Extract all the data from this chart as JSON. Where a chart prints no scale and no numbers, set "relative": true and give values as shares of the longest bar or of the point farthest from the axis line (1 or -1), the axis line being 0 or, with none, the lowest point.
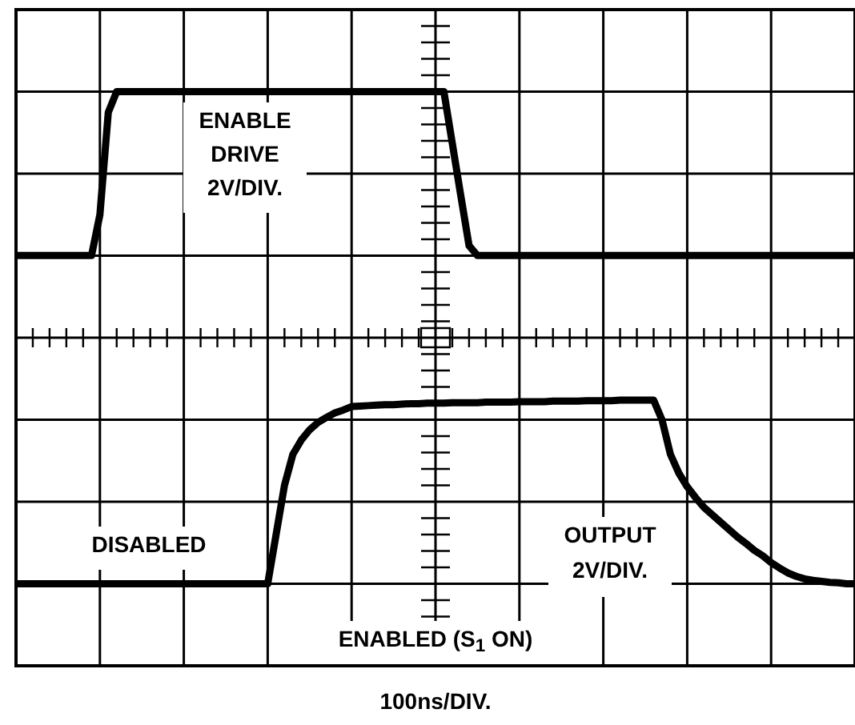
{
  "chart_data": {
    "type": "line",
    "relative": true,
    "grid": true,
    "marker": "none",
    "line_style": "solid",
    "categories": [
      null,
      null,
      null,
      null,
      null,
      null,
      null,
      null,
      null,
      null,
      null,
      null,
      null,
      null,
      null,
      null,
      null,
      null,
      null,
      null,
      null,
      null,
      null,
      null,
      null,
      null,
      null,
      null,
      null,
      null,
      null,
      null,
      null,
      null,
      null,
      null,
      null,
      null,
      null,
      null,
      null,
      null,
      null,
      null,
      null,
      null,
      null,
      null,
      null,
      null,
      null,
      null,
      null,
      null,
      null,
      null,
      null,
      null,
      null,
      null,
      null,
      null,
      null,
      null,
      null,
      null,
      null,
      null,
      null,
      null,
      null,
      null,
      null,
      null,
      null,
      null,
      null,
      null,
      null,
      null,
      null,
      null,
      null,
      null,
      null,
      null,
      null,
      null,
      null,
      null,
      null,
      null,
      null,
      null,
      null,
      null,
      null,
      null,
      null,
      null,
      null
    ],
    "series": [
      {
        "color": "#000000",
        "values": [
          0.667,
          0.667,
          0.667,
          0.667,
          0.667,
          0.667,
          0.667,
          0.667,
          0.667,
          0.667,
          0.75,
          0.958,
          1,
          1,
          1,
          1,
          1,
          1,
          1,
          1,
          1,
          1,
          1,
          1,
          1,
          1,
          1,
          1,
          1,
          1,
          1,
          1,
          1,
          1,
          1,
          1,
          1,
          1,
          1,
          1,
          1,
          1,
          1,
          1,
          1,
          1,
          1,
          1,
          1,
          1,
          1,
          1,
          0.895,
          0.79,
          0.687,
          0.667,
          0.667,
          0.667,
          0.667,
          0.667,
          0.667,
          0.667,
          0.667,
          0.667,
          0.667,
          0.667,
          0.667,
          0.667,
          0.667,
          0.667,
          0.667,
          0.667,
          0.667,
          0.667,
          0.667,
          0.667,
          0.667,
          0.667,
          0.667,
          0.667,
          0.667,
          0.667,
          0.667,
          0.667,
          0.667,
          0.667,
          0.667,
          0.667,
          0.667,
          0.667,
          0.667,
          0.667,
          0.667,
          0.667,
          0.667,
          0.667,
          0.667,
          0.667,
          0.667,
          0.667,
          0.667
        ]
      },
      {
        "color": "#000000",
        "values": [
          0,
          0,
          0,
          0,
          0,
          0,
          0,
          0,
          0,
          0,
          0,
          0,
          0,
          0,
          0,
          0,
          0,
          0,
          0,
          0,
          0,
          0,
          0,
          0,
          0,
          0,
          0,
          0,
          0,
          0,
          0,
          0.1,
          0.2,
          0.263,
          0.292,
          0.313,
          0.328,
          0.338,
          0.347,
          0.353,
          0.36,
          0.361,
          0.362,
          0.363,
          0.364,
          0.364,
          0.365,
          0.366,
          0.366,
          0.367,
          0.367,
          0.367,
          0.368,
          0.368,
          0.368,
          0.368,
          0.369,
          0.369,
          0.369,
          0.369,
          0.37,
          0.37,
          0.37,
          0.37,
          0.371,
          0.371,
          0.371,
          0.371,
          0.372,
          0.372,
          0.372,
          0.372,
          0.373,
          0.373,
          0.373,
          0.373,
          0.373,
          0.333,
          0.263,
          0.225,
          0.197,
          0.175,
          0.155,
          0.14,
          0.125,
          0.11,
          0.095,
          0.082,
          0.068,
          0.057,
          0.043,
          0.032,
          0.022,
          0.015,
          0.01,
          0.007,
          0.005,
          0.003,
          0.002,
          0,
          0
        ]
      }
    ],
    "annotations": [
      "ENABLE\nDRIVE\n2V/DIV.",
      "DISABLED",
      "OUTPUT\n2V/DIV.",
      "ENABLED (S$_{1}$ ON)",
      "100ns/DIV."
    ]
  }
}
